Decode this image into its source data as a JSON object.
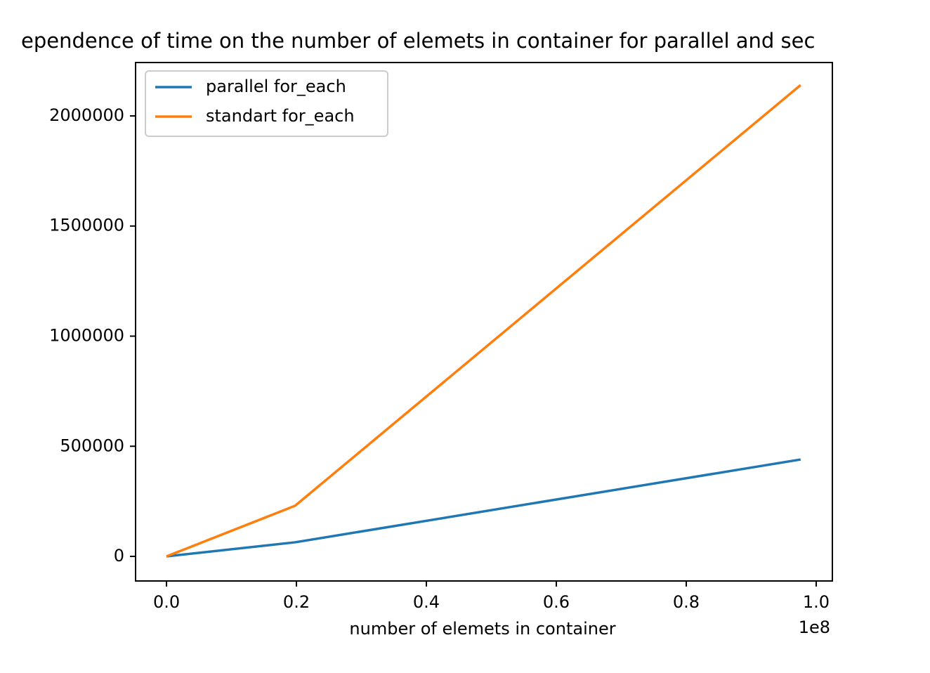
{
  "chart_data": {
    "type": "line",
    "title": "ependence of time on the number of elemets in container for parallel and sec",
    "xlabel": "number of elemets in container",
    "x_offset_label": "1e8",
    "x": [
      0,
      19800000,
      97600000
    ],
    "series": [
      {
        "name": "parallel for_each",
        "color": "#1f77b4",
        "values": [
          0,
          64000,
          440000
        ]
      },
      {
        "name": "standart for_each",
        "color": "#ff7f0e",
        "values": [
          0,
          230000,
          2140000
        ]
      }
    ],
    "xlim": [
      -4760000,
      102490000
    ],
    "xticks": [
      {
        "value": 0,
        "label": "0.0"
      },
      {
        "value": 20000000,
        "label": "0.2"
      },
      {
        "value": 40000000,
        "label": "0.4"
      },
      {
        "value": 60000000,
        "label": "0.6"
      },
      {
        "value": 80000000,
        "label": "0.8"
      },
      {
        "value": 100000000,
        "label": "1.0"
      }
    ],
    "ylim": [
      -111600,
      2242400
    ],
    "yticks": [
      0,
      500000,
      1000000,
      1500000,
      2000000
    ],
    "legend": "upper left",
    "grid": false
  }
}
